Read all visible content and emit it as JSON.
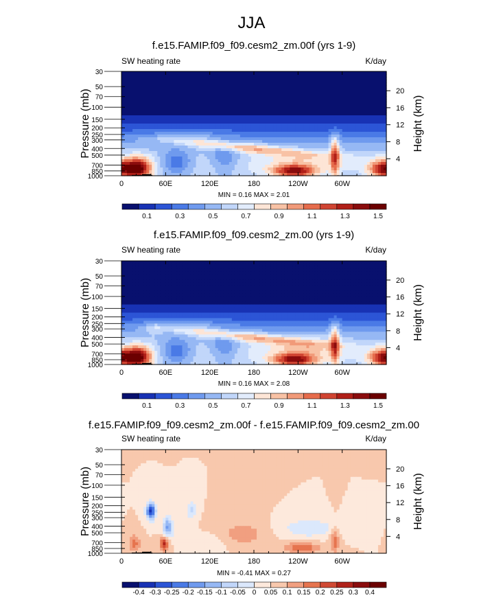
{
  "figure": {
    "title": "JJA"
  },
  "colors": {
    "palette": [
      "#08106e",
      "#1832b4",
      "#2c55d6",
      "#4a7ae6",
      "#6f9aee",
      "#96b8f4",
      "#c1d6fa",
      "#e2ecfc",
      "#fde5d6",
      "#f8c2a5",
      "#f19a79",
      "#e66c4c",
      "#d04432",
      "#b01f18",
      "#8a0c0d",
      "#6b0000"
    ],
    "diff_palette": [
      "#08106e",
      "#1832b4",
      "#2c55d6",
      "#4a7ae6",
      "#6f9aee",
      "#96b8f4",
      "#c1d6fa",
      "#dbe8fc",
      "#fde9dc",
      "#f8c8ad",
      "#f19f80",
      "#e6744f",
      "#d04a34",
      "#b0221a",
      "#8a0c0d",
      "#6b0000"
    ],
    "topography": "#000000"
  },
  "chart_data": [
    {
      "type": "contour",
      "id": "panel1",
      "title": "f.e15.FAMIP.f09_f09.cesm2_zm.00f (yrs 1-9)",
      "left_string": "SW heating rate",
      "right_string": "K/day",
      "ylabel": "Pressure (mb)",
      "ylabel_right": "Height (km)",
      "x_ticks": [
        "0",
        "60E",
        "120E",
        "180",
        "120W",
        "60W"
      ],
      "x_tick_lons": [
        0,
        60,
        120,
        180,
        240,
        300
      ],
      "xlim": [
        0,
        360
      ],
      "y_ticks": [
        "30",
        "50",
        "70",
        "100",
        "150",
        "200",
        "250",
        "300",
        "400",
        "500",
        "700",
        "850",
        "1000"
      ],
      "y_tick_values": [
        30,
        50,
        70,
        100,
        150,
        200,
        250,
        300,
        400,
        500,
        700,
        850,
        1000
      ],
      "ylim": [
        1000,
        30
      ],
      "height_ticks": [
        "4",
        "8",
        "12",
        "16",
        "20"
      ],
      "height_tick_values": [
        4,
        8,
        12,
        16,
        20
      ],
      "stats": "MIN =  0.16  MAX =   2.01",
      "min": 0.16,
      "max": 2.01,
      "field": "full",
      "colorbar_labels": [
        "0.1",
        "0.3",
        "0.5",
        "0.7",
        "0.9",
        "1.1",
        "1.3",
        "1.5"
      ],
      "colorbar_min": 0.0,
      "colorbar_step": 0.1
    },
    {
      "type": "contour",
      "id": "panel2",
      "title": "f.e15.FAMIP.f09_f09.cesm2_zm.00 (yrs 1-9)",
      "left_string": "SW heating rate",
      "right_string": "K/day",
      "ylabel": "Pressure (mb)",
      "ylabel_right": "Height (km)",
      "x_ticks": [
        "0",
        "60E",
        "120E",
        "180",
        "120W",
        "60W"
      ],
      "x_tick_lons": [
        0,
        60,
        120,
        180,
        240,
        300
      ],
      "xlim": [
        0,
        360
      ],
      "y_ticks": [
        "30",
        "50",
        "70",
        "100",
        "150",
        "200",
        "250",
        "300",
        "400",
        "500",
        "700",
        "850",
        "1000"
      ],
      "y_tick_values": [
        30,
        50,
        70,
        100,
        150,
        200,
        250,
        300,
        400,
        500,
        700,
        850,
        1000
      ],
      "ylim": [
        1000,
        30
      ],
      "height_ticks": [
        "4",
        "8",
        "12",
        "16",
        "20"
      ],
      "height_tick_values": [
        4,
        8,
        12,
        16,
        20
      ],
      "stats": "MIN =  0.16  MAX =   2.08",
      "min": 0.16,
      "max": 2.08,
      "field": "full2",
      "colorbar_labels": [
        "0.1",
        "0.3",
        "0.5",
        "0.7",
        "0.9",
        "1.1",
        "1.3",
        "1.5"
      ],
      "colorbar_min": 0.0,
      "colorbar_step": 0.1
    },
    {
      "type": "contour",
      "id": "panel3",
      "title": "f.e15.FAMIP.f09_f09.cesm2_zm.00f - f.e15.FAMIP.f09_f09.cesm2_zm.00",
      "left_string": "SW heating rate",
      "right_string": "K/day",
      "ylabel": "Pressure (mb)",
      "ylabel_right": "Height (km)",
      "x_ticks": [
        "0",
        "60E",
        "120E",
        "180",
        "120W",
        "60W"
      ],
      "x_tick_lons": [
        0,
        60,
        120,
        180,
        240,
        300
      ],
      "xlim": [
        0,
        360
      ],
      "y_ticks": [
        "30",
        "50",
        "70",
        "100",
        "150",
        "200",
        "250",
        "300",
        "400",
        "500",
        "700",
        "850",
        "1000"
      ],
      "y_tick_values": [
        30,
        50,
        70,
        100,
        150,
        200,
        250,
        300,
        400,
        500,
        700,
        850,
        1000
      ],
      "ylim": [
        1000,
        30
      ],
      "height_ticks": [
        "4",
        "8",
        "12",
        "16",
        "20"
      ],
      "height_tick_values": [
        4,
        8,
        12,
        16,
        20
      ],
      "stats": "MIN = -0.41   MAX =   0.27",
      "min": -0.41,
      "max": 0.27,
      "field": "diff",
      "colorbar_labels": [
        "-0.4",
        "-0.3",
        "-0.25",
        "-0.2",
        "-0.15",
        "-0.1",
        "-0.05",
        "0",
        "0.05",
        "0.1",
        "0.15",
        "0.2",
        "0.25",
        "0.3",
        "0.4"
      ],
      "colorbar_min": -0.45,
      "colorbar_step": 0.05
    }
  ]
}
